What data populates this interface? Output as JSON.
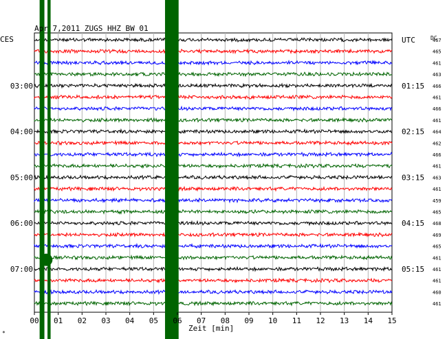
{
  "chart_data": {
    "type": "line",
    "title": "Apr 7,2011   ZUGS HHZ BW 01",
    "xlabel": "Zeit [min]",
    "left_timezone": "CES",
    "right_timezone": "UTC",
    "dc_header": "DC",
    "x_ticks": [
      "00",
      "01",
      "02",
      "03",
      "04",
      "05",
      "06",
      "07",
      "08",
      "09",
      "10",
      "11",
      "12",
      "13",
      "14",
      "15"
    ],
    "xlim": [
      0,
      15
    ],
    "left_hour_labels": [
      {
        "row": 4,
        "text": "03:00"
      },
      {
        "row": 8,
        "text": "04:00"
      },
      {
        "row": 12,
        "text": "05:00"
      },
      {
        "row": 16,
        "text": "06:00"
      },
      {
        "row": 20,
        "text": "07:00"
      }
    ],
    "right_hour_labels": [
      {
        "row": 0,
        "text": "UTC"
      },
      {
        "row": 4,
        "text": "01:15"
      },
      {
        "row": 8,
        "text": "02:15"
      },
      {
        "row": 12,
        "text": "03:15"
      },
      {
        "row": 16,
        "text": "04:15"
      },
      {
        "row": 20,
        "text": "05:15"
      }
    ],
    "trace_colors": [
      "#000000",
      "#ff0000",
      "#0000ff",
      "#006400"
    ],
    "dc_offsets": [
      "467",
      "465",
      "461",
      "463",
      "466",
      "461",
      "466",
      "461",
      "464",
      "462",
      "466",
      "461",
      "463",
      "461",
      "459",
      "465",
      "468",
      "469",
      "465",
      "461",
      "461",
      "461",
      "460",
      "461"
    ],
    "event_color": "#006400",
    "event_bands_minutes": [
      {
        "start": 0.22,
        "end": 0.42
      },
      {
        "start": 0.55,
        "end": 0.68
      },
      {
        "start": 5.48,
        "end": 6.05
      }
    ],
    "grid": true
  },
  "footer_mark": "*"
}
